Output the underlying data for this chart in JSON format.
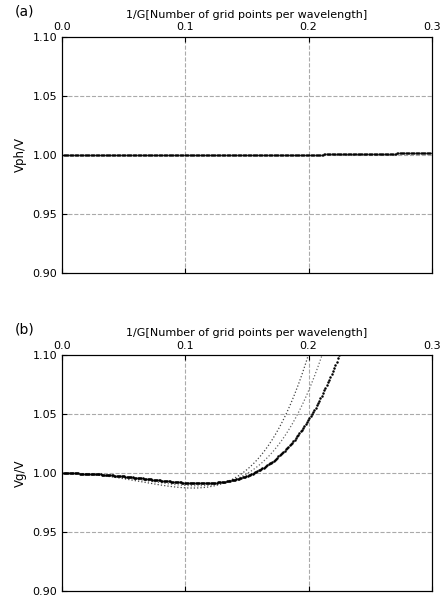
{
  "xlim": [
    0.0,
    0.3
  ],
  "xticks": [
    0.0,
    0.1,
    0.2,
    0.3
  ],
  "ylim": [
    0.9,
    1.1
  ],
  "yticks": [
    0.9,
    0.95,
    1.0,
    1.05,
    1.1
  ],
  "xlabel_top": "1/G[Number of grid points per wavelength]",
  "ylabel_a": "Vph/V",
  "ylabel_b": "Vg/V",
  "label_a": "(a)",
  "label_b": "(b)",
  "vline_positions": [
    0.1,
    0.2
  ],
  "hline_positions": [
    0.95,
    1.0,
    1.05
  ],
  "background_color": "#ffffff",
  "grid_color": "#aaaaaa",
  "num_points": 300,
  "vph_coeffs": [
    1.0,
    0.0,
    0.0,
    0.0,
    0.0,
    0.002
  ],
  "vg_main_coeffs": [
    1.0,
    0.004,
    -0.13,
    0.04,
    0.15,
    0.45
  ],
  "vg_mid_coeffs": [
    1.0,
    0.004,
    -0.17,
    0.06,
    0.2,
    0.65
  ],
  "vg_outer_coeffs": [
    1.0,
    0.004,
    -0.21,
    0.08,
    0.25,
    0.9
  ]
}
